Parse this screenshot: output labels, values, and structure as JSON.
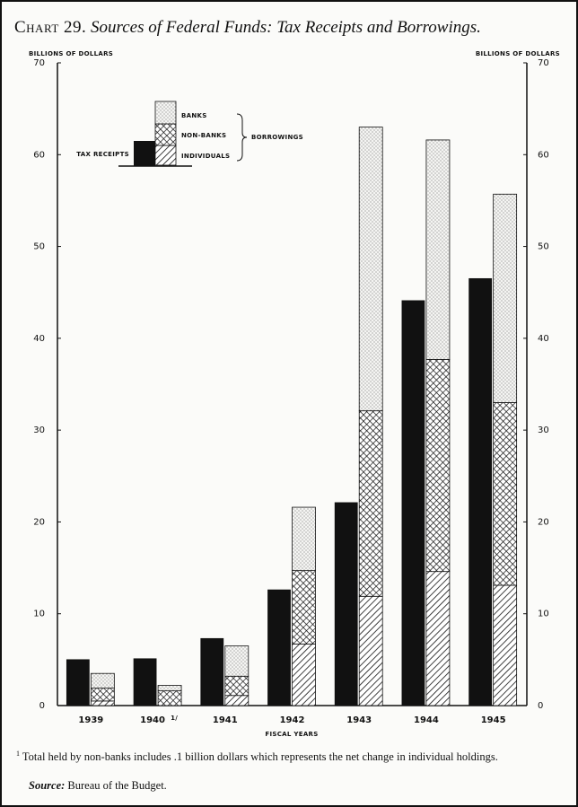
{
  "chart_data": {
    "type": "grouped_stacked_bar",
    "title_number": "Chart 29.",
    "title": "Sources of Federal Funds: Tax Receipts and Borrowings.",
    "y_label": "BILLIONS OF DOLLARS",
    "y2_label": "BILLIONS OF DOLLARS",
    "x_label": "FISCAL YEARS",
    "categories": [
      "1939",
      "1940",
      "1941",
      "1942",
      "1943",
      "1944",
      "1945"
    ],
    "category_notes": [
      null,
      "1/",
      null,
      null,
      null,
      null,
      null
    ],
    "ylim": [
      0,
      70
    ],
    "yticks": [
      0,
      10,
      20,
      30,
      40,
      50,
      60,
      70
    ],
    "y2lim": [
      0,
      70
    ],
    "y2ticks": [
      0,
      10,
      20,
      30,
      40,
      50,
      60,
      70
    ],
    "legend_group": "BORROWINGS",
    "series": [
      {
        "name": "TAX RECEIPTS",
        "color": "#111111",
        "pattern": "solid",
        "stack": false,
        "values": [
          5.0,
          5.1,
          7.3,
          12.6,
          22.1,
          44.1,
          46.5
        ]
      },
      {
        "name": "INDIVIDUALS",
        "color": "#111111",
        "pattern": "hatch",
        "stack": true,
        "values": [
          0.5,
          0,
          1.1,
          6.7,
          11.9,
          14.6,
          13.1
        ]
      },
      {
        "name": "NON-BANKS",
        "color": "#111111",
        "pattern": "crosshatch",
        "stack": true,
        "values": [
          1.4,
          1.6,
          2.1,
          8.0,
          20.2,
          23.1,
          19.9
        ]
      },
      {
        "name": "BANKS",
        "color": "#111111",
        "pattern": "dots",
        "stack": true,
        "values": [
          1.6,
          0.6,
          3.3,
          6.9,
          30.9,
          23.9,
          22.7
        ]
      }
    ],
    "footnote": {
      "mark": "1",
      "text": "Total held by non-banks includes .1 billion dollars which represents the net change in individual holdings."
    },
    "source_label": "Source:",
    "source": "Bureau of the Budget."
  }
}
